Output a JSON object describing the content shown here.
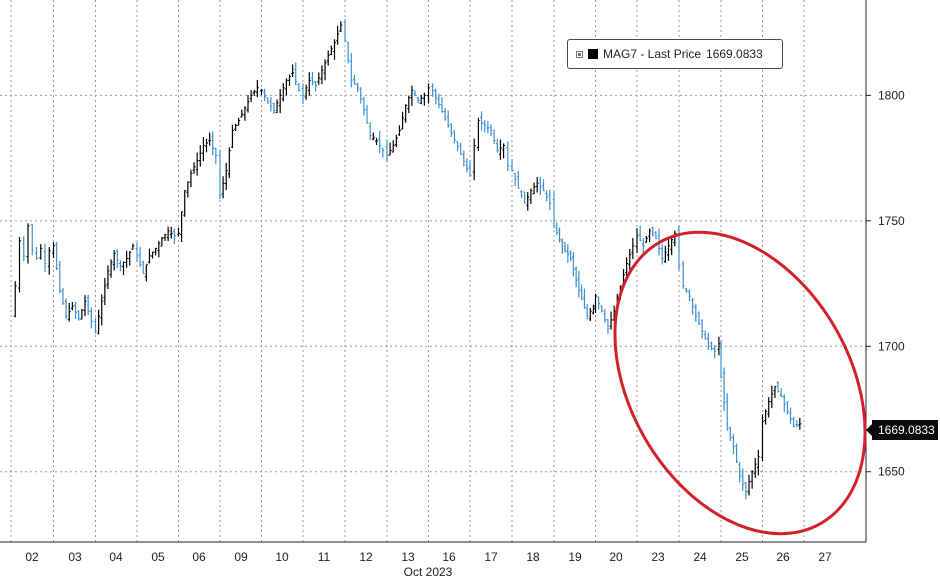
{
  "chart_data": {
    "type": "line",
    "style": "ohlc-bars",
    "xlabel": "Oct 2023",
    "x_ticks": [
      "02",
      "03",
      "04",
      "05",
      "06",
      "09",
      "10",
      "11",
      "12",
      "13",
      "16",
      "17",
      "18",
      "19",
      "20",
      "23",
      "24",
      "25",
      "26",
      "27"
    ],
    "y_ticks": [
      1650,
      1700,
      1750,
      1800
    ],
    "ylim": [
      1622,
      1838
    ],
    "grid": true,
    "legend_position": "top-right",
    "series": [
      {
        "name": "MAG7 - Last Price",
        "last_value_label": "1669.0833",
        "up_color": "#000000",
        "down_color": "#3a8fd4",
        "points": [
          [
            "02",
            0.0,
            1712
          ],
          [
            "02",
            0.1,
            1724
          ],
          [
            "02",
            0.2,
            1742
          ],
          [
            "02",
            0.3,
            1736
          ],
          [
            "02",
            0.4,
            1748
          ],
          [
            "02",
            0.5,
            1738
          ],
          [
            "02",
            0.6,
            1735
          ],
          [
            "02",
            0.7,
            1739
          ],
          [
            "02",
            0.8,
            1733
          ],
          [
            "02",
            0.9,
            1738
          ],
          [
            "03",
            0.0,
            1740
          ],
          [
            "03",
            0.15,
            1722
          ],
          [
            "03",
            0.3,
            1712
          ],
          [
            "03",
            0.45,
            1716
          ],
          [
            "03",
            0.6,
            1711
          ],
          [
            "03",
            0.75,
            1718
          ],
          [
            "03",
            0.9,
            1710
          ],
          [
            "04",
            0.0,
            1706
          ],
          [
            "04",
            0.15,
            1718
          ],
          [
            "04",
            0.3,
            1730
          ],
          [
            "04",
            0.45,
            1737
          ],
          [
            "04",
            0.6,
            1732
          ],
          [
            "04",
            0.75,
            1735
          ],
          [
            "04",
            0.9,
            1740
          ],
          [
            "05",
            0.0,
            1736
          ],
          [
            "05",
            0.15,
            1729
          ],
          [
            "05",
            0.3,
            1736
          ],
          [
            "05",
            0.45,
            1739
          ],
          [
            "05",
            0.6,
            1743
          ],
          [
            "05",
            0.75,
            1746
          ],
          [
            "05",
            0.9,
            1744
          ],
          [
            "06",
            0.0,
            1745
          ],
          [
            "06",
            0.15,
            1762
          ],
          [
            "06",
            0.3,
            1769
          ],
          [
            "06",
            0.45,
            1774
          ],
          [
            "06",
            0.6,
            1780
          ],
          [
            "06",
            0.75,
            1782
          ],
          [
            "06",
            0.9,
            1776
          ],
          [
            "09",
            0.0,
            1760
          ],
          [
            "09",
            0.15,
            1770
          ],
          [
            "09",
            0.3,
            1786
          ],
          [
            "09",
            0.45,
            1790
          ],
          [
            "09",
            0.6,
            1795
          ],
          [
            "09",
            0.75,
            1800
          ],
          [
            "09",
            0.9,
            1803
          ],
          [
            "10",
            0.0,
            1802
          ],
          [
            "10",
            0.15,
            1797
          ],
          [
            "10",
            0.3,
            1794
          ],
          [
            "10",
            0.45,
            1800
          ],
          [
            "10",
            0.6,
            1806
          ],
          [
            "10",
            0.75,
            1809
          ],
          [
            "10",
            0.9,
            1802
          ],
          [
            "11",
            0.0,
            1800
          ],
          [
            "11",
            0.15,
            1806
          ],
          [
            "11",
            0.3,
            1804
          ],
          [
            "11",
            0.45,
            1810
          ],
          [
            "11",
            0.6,
            1816
          ],
          [
            "11",
            0.75,
            1821
          ],
          [
            "11",
            0.9,
            1828
          ],
          [
            "12",
            0.0,
            1822
          ],
          [
            "12",
            0.15,
            1806
          ],
          [
            "12",
            0.3,
            1803
          ],
          [
            "12",
            0.45,
            1794
          ],
          [
            "12",
            0.6,
            1784
          ],
          [
            "12",
            0.75,
            1782
          ],
          [
            "12",
            0.9,
            1778
          ],
          [
            "13",
            0.0,
            1776
          ],
          [
            "13",
            0.15,
            1780
          ],
          [
            "13",
            0.3,
            1786
          ],
          [
            "13",
            0.45,
            1796
          ],
          [
            "13",
            0.6,
            1802
          ],
          [
            "13",
            0.75,
            1798
          ],
          [
            "13",
            0.9,
            1800
          ],
          [
            "16",
            0.0,
            1803
          ],
          [
            "16",
            0.1,
            1802
          ],
          [
            "17",
            0.0,
            1768
          ],
          [
            "17",
            0.1,
            1780
          ],
          [
            "17",
            0.2,
            1790
          ],
          [
            "17",
            0.35,
            1788
          ],
          [
            "17",
            0.5,
            1786
          ],
          [
            "17",
            0.65,
            1778
          ],
          [
            "17",
            0.8,
            1780
          ],
          [
            "17",
            0.9,
            1772
          ],
          [
            "18",
            0.0,
            1770
          ],
          [
            "18",
            0.15,
            1763
          ],
          [
            "18",
            0.3,
            1757
          ],
          [
            "18",
            0.45,
            1762
          ],
          [
            "18",
            0.6,
            1765
          ],
          [
            "18",
            0.75,
            1762
          ],
          [
            "18",
            0.9,
            1757
          ],
          [
            "19",
            0.0,
            1748
          ],
          [
            "19",
            0.2,
            1740
          ],
          [
            "19",
            0.4,
            1735
          ],
          [
            "19",
            0.6,
            1722
          ],
          [
            "19",
            0.8,
            1712
          ],
          [
            "19",
            0.95,
            1716
          ],
          [
            "20",
            0.0,
            1720
          ],
          [
            "20",
            0.15,
            1714
          ],
          [
            "20",
            0.3,
            1707
          ],
          [
            "20",
            0.45,
            1714
          ],
          [
            "20",
            0.6,
            1724
          ],
          [
            "20",
            0.75,
            1733
          ],
          [
            "20",
            0.9,
            1740
          ],
          [
            "23",
            0.0,
            1744
          ],
          [
            "23",
            0.15,
            1740
          ],
          [
            "23",
            0.3,
            1746
          ],
          [
            "23",
            0.45,
            1743
          ],
          [
            "23",
            0.6,
            1735
          ],
          [
            "23",
            0.75,
            1740
          ],
          [
            "23",
            0.9,
            1745
          ],
          [
            "24",
            0.0,
            1732
          ],
          [
            "24",
            0.1,
            1724
          ],
          [
            "24",
            0.25,
            1720
          ],
          [
            "24",
            0.4,
            1712
          ],
          [
            "24",
            0.55,
            1706
          ],
          [
            "24",
            0.7,
            1700
          ],
          [
            "24",
            0.85,
            1698
          ],
          [
            "24",
            0.95,
            1701
          ],
          [
            "25",
            0.0,
            1688
          ],
          [
            "25",
            0.15,
            1667
          ],
          [
            "25",
            0.3,
            1660
          ],
          [
            "25",
            0.45,
            1648
          ],
          [
            "25",
            0.6,
            1642
          ],
          [
            "25",
            0.75,
            1650
          ],
          [
            "25",
            0.9,
            1656
          ],
          [
            "26",
            0.0,
            1670
          ],
          [
            "26",
            0.15,
            1678
          ],
          [
            "26",
            0.3,
            1684
          ],
          [
            "26",
            0.45,
            1680
          ],
          [
            "26",
            0.6,
            1674
          ],
          [
            "26",
            0.75,
            1668
          ],
          [
            "26",
            0.9,
            1669.0833
          ]
        ]
      }
    ]
  }
}
